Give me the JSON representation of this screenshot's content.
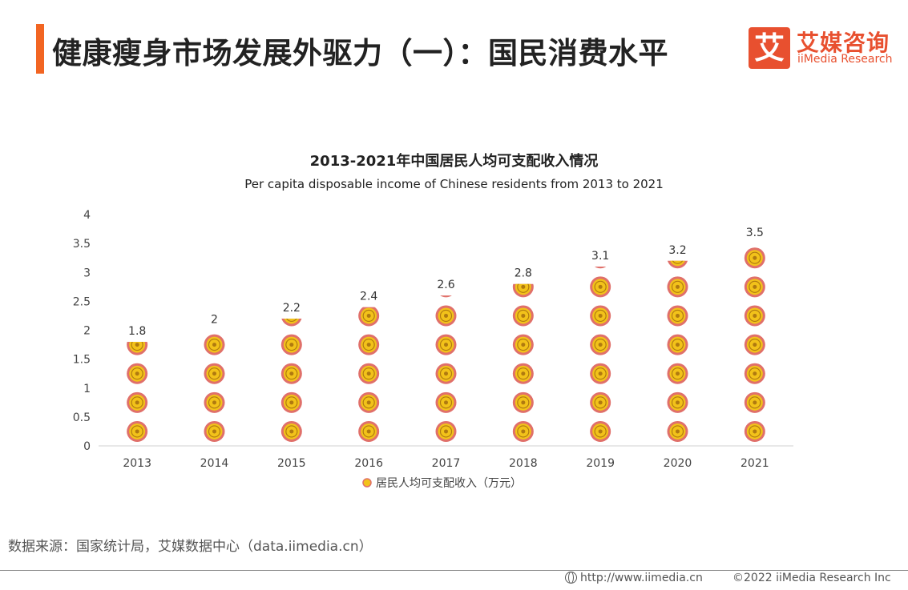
{
  "header": {
    "title": "健康瘦身市场发展外驱力（一）：国民消费水平",
    "accent_color": "#f26522"
  },
  "logo": {
    "mark": "艾",
    "name_cn": "艾媒咨询",
    "name_en": "iiMedia Research",
    "brand_color": "#e8502f"
  },
  "chart_data": {
    "type": "bar",
    "title": "2013-2021年中国居民人均可支配收入情况",
    "subtitle": "Per capita disposable income of Chinese residents from 2013 to 2021",
    "categories": [
      "2013",
      "2014",
      "2015",
      "2016",
      "2017",
      "2018",
      "2019",
      "2020",
      "2021"
    ],
    "series": [
      {
        "name": "居民人均可支配收入（万元）",
        "values": [
          1.8,
          2,
          2.2,
          2.4,
          2.6,
          2.8,
          3.1,
          3.2,
          3.5
        ]
      }
    ],
    "data_labels": [
      "1.8",
      "2",
      "2.2",
      "2.4",
      "2.6",
      "2.8",
      "3.1",
      "3.2",
      "3.5"
    ],
    "ylim": [
      0,
      4
    ],
    "yticks": [
      "0",
      "0.5",
      "1",
      "1.5",
      "2",
      "2.5",
      "3",
      "3.5",
      "4"
    ],
    "xlabel": "",
    "ylabel": "",
    "grid": false,
    "legend_position": "bottom",
    "mark_style": "stacked coin pictograph",
    "colors": {
      "coin_outer": "#e0706a",
      "coin_inner": "#f2c21a"
    }
  },
  "source": "数据来源：国家统计局，艾媒数据中心（data.iimedia.cn）",
  "footer": {
    "url": "http://www.iimedia.cn",
    "copyright": "©2022  iiMedia Research  Inc",
    "globe_icon": "globe-icon"
  }
}
